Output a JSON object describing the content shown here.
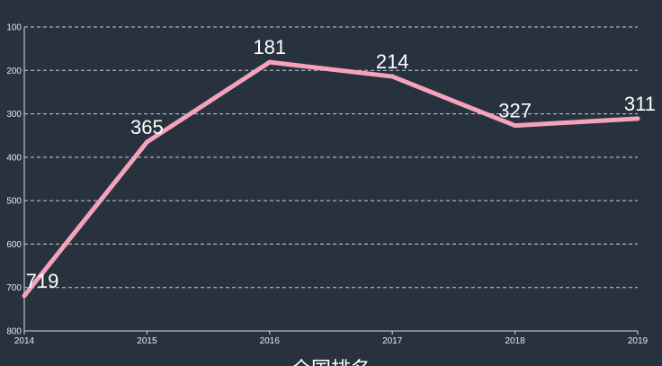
{
  "chart_data": {
    "type": "line",
    "title": "全国排名",
    "x": [
      "2014",
      "2015",
      "2016",
      "2017",
      "2018",
      "2019"
    ],
    "series": [
      {
        "values": [
          719,
          365,
          181,
          214,
          327,
          311
        ]
      }
    ],
    "ylim": [
      100,
      800
    ],
    "y_inverted": true,
    "y_ticks": [
      100,
      200,
      300,
      400,
      500,
      600,
      700,
      800
    ],
    "grid": true,
    "legend": "none",
    "colors": {
      "background": "#28323f",
      "line": "#f4a3bb",
      "grid": "#c9ced6",
      "text": "#ffffff"
    }
  }
}
